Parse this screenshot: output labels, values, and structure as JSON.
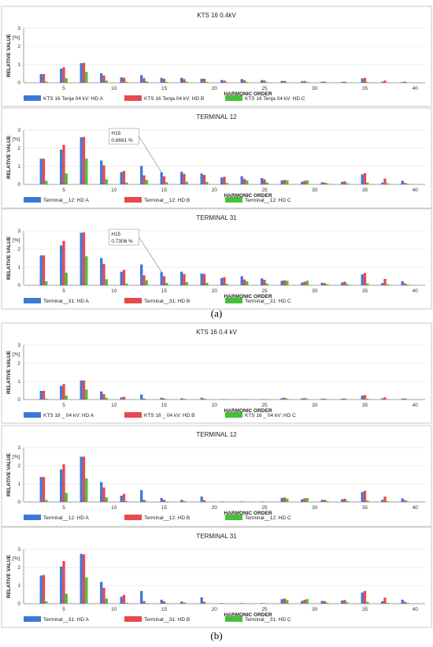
{
  "colors": {
    "A": "#3c78d8",
    "B": "#e8484e",
    "C": "#44c13b"
  },
  "figure": {
    "captions": [
      "(a)",
      "(b)"
    ]
  },
  "chart_data": [
    {
      "type": "bar",
      "group": "(a)",
      "title": "KTS 16 0.4kV",
      "ylabel": "RELATIVE VALUE",
      "yunit": "[%]",
      "xlabel": "HARMONIC ORDER",
      "ylim": [
        0,
        3
      ],
      "yticks": [
        0,
        1,
        2,
        3
      ],
      "xticks": [
        5,
        10,
        15,
        20,
        25,
        30,
        35,
        40
      ],
      "categories": [
        3,
        5,
        7,
        9,
        11,
        13,
        15,
        17,
        19,
        21,
        23,
        25,
        27,
        29,
        31,
        33,
        35,
        37,
        39
      ],
      "series": [
        {
          "name": "KTS 16 Tenja 04 kV: HD A",
          "values": [
            0.48,
            0.78,
            1.08,
            0.52,
            0.3,
            0.42,
            0.27,
            0.27,
            0.22,
            0.15,
            0.2,
            0.15,
            0.1,
            0.08,
            0.06,
            0.05,
            0.24,
            0.06,
            0.04
          ]
        },
        {
          "name": "KTS 16 Tenja 04 kV: HD B",
          "values": [
            0.48,
            0.85,
            1.1,
            0.4,
            0.28,
            0.25,
            0.22,
            0.2,
            0.22,
            0.12,
            0.14,
            0.12,
            0.1,
            0.1,
            0.06,
            0.06,
            0.27,
            0.12,
            0.06
          ]
        },
        {
          "name": "KTS 16 Tenja 04 kV: HD C",
          "values": [
            0.06,
            0.25,
            0.6,
            0.12,
            0.05,
            0.08,
            0.05,
            0.06,
            0.05,
            0.03,
            0.04,
            0.03,
            0.03,
            0.04,
            0.02,
            0.02,
            0.04,
            0.02,
            0.02
          ]
        }
      ]
    },
    {
      "type": "bar",
      "group": "(a)",
      "title": "TERMINAL 12",
      "ylabel": "RELATIVE VALUE",
      "yunit": "[%]",
      "xlabel": "HARMONIC ORDER",
      "ylim": [
        0,
        3
      ],
      "yticks": [
        0,
        1,
        2,
        3
      ],
      "xticks": [
        5,
        10,
        15,
        20,
        25,
        30,
        35,
        40
      ],
      "categories": [
        3,
        5,
        7,
        9,
        11,
        13,
        15,
        17,
        19,
        21,
        23,
        25,
        27,
        29,
        31,
        33,
        35,
        37,
        39
      ],
      "annotation": {
        "label": "H15",
        "value": "0.6691 %",
        "x": 15,
        "y": 0.6691
      },
      "series": [
        {
          "name": "Terminal__12: HD A",
          "values": [
            1.42,
            1.92,
            2.6,
            1.32,
            0.68,
            1.02,
            0.67,
            0.7,
            0.6,
            0.38,
            0.45,
            0.35,
            0.22,
            0.15,
            0.12,
            0.14,
            0.55,
            0.1,
            0.2
          ]
        },
        {
          "name": "Terminal__12: HD B",
          "values": [
            1.42,
            2.18,
            2.62,
            1.05,
            0.75,
            0.5,
            0.45,
            0.58,
            0.52,
            0.42,
            0.3,
            0.28,
            0.25,
            0.2,
            0.1,
            0.17,
            0.62,
            0.32,
            0.08
          ]
        },
        {
          "name": "Terminal__12: HD C",
          "values": [
            0.2,
            0.6,
            1.42,
            0.28,
            0.1,
            0.25,
            0.12,
            0.15,
            0.14,
            0.08,
            0.22,
            0.1,
            0.22,
            0.22,
            0.06,
            0.06,
            0.1,
            0.06,
            0.04
          ]
        }
      ]
    },
    {
      "type": "bar",
      "group": "(a)",
      "title": "TERMINAL 31",
      "ylabel": "RELATIVE VALUE",
      "yunit": "[%]",
      "xlabel": "HARMONIC ORDER",
      "ylim": [
        0,
        3
      ],
      "yticks": [
        0,
        1,
        2,
        3
      ],
      "xticks": [
        5,
        10,
        15,
        20,
        25,
        30,
        35,
        40
      ],
      "categories": [
        3,
        5,
        7,
        9,
        11,
        13,
        15,
        17,
        19,
        21,
        23,
        25,
        27,
        29,
        31,
        33,
        35,
        37,
        39
      ],
      "annotation": {
        "label": "H15",
        "value": "0.7306 %",
        "x": 15,
        "y": 0.7306
      },
      "series": [
        {
          "name": "Terminal__31: HD A",
          "values": [
            1.65,
            2.2,
            2.9,
            1.5,
            0.75,
            1.15,
            0.73,
            0.75,
            0.65,
            0.4,
            0.5,
            0.38,
            0.25,
            0.15,
            0.14,
            0.15,
            0.6,
            0.12,
            0.22
          ]
        },
        {
          "name": "Terminal__31: HD B",
          "values": [
            1.65,
            2.45,
            2.92,
            1.18,
            0.85,
            0.55,
            0.5,
            0.62,
            0.62,
            0.45,
            0.32,
            0.3,
            0.27,
            0.2,
            0.12,
            0.2,
            0.68,
            0.35,
            0.1
          ]
        },
        {
          "name": "Terminal__31: HD C",
          "values": [
            0.22,
            0.7,
            1.6,
            0.33,
            0.1,
            0.28,
            0.13,
            0.17,
            0.14,
            0.08,
            0.22,
            0.1,
            0.25,
            0.25,
            0.06,
            0.07,
            0.1,
            0.06,
            0.04
          ]
        }
      ]
    },
    {
      "type": "bar",
      "group": "(b)",
      "title": "KTS 16 0.4 kV",
      "ylabel": "RELATIVE VALUE",
      "yunit": "[%]",
      "xlabel": "HARMONIC ORDER",
      "ylim": [
        0,
        3
      ],
      "yticks": [
        0,
        1,
        2,
        3
      ],
      "xticks": [
        5,
        10,
        15,
        20,
        25,
        30,
        35,
        40
      ],
      "categories": [
        3,
        5,
        7,
        9,
        11,
        13,
        15,
        17,
        19,
        21,
        23,
        25,
        27,
        29,
        31,
        33,
        35,
        37,
        39
      ],
      "series": [
        {
          "name": "KTS 16 _ 04 kV: HD A",
          "values": [
            0.48,
            0.75,
            1.05,
            0.45,
            0.12,
            0.28,
            0.1,
            0.07,
            0.1,
            0.02,
            0.02,
            0.02,
            0.08,
            0.06,
            0.05,
            0.05,
            0.22,
            0.06,
            0.05
          ]
        },
        {
          "name": "KTS 16 _ 04 kV: HD B",
          "values": [
            0.48,
            0.85,
            1.05,
            0.3,
            0.15,
            0.06,
            0.06,
            0.04,
            0.05,
            0.02,
            0.02,
            0.02,
            0.1,
            0.08,
            0.05,
            0.06,
            0.25,
            0.12,
            0.06
          ]
        },
        {
          "name": "KTS 16 _ 04 kV: HD C",
          "values": [
            0.05,
            0.22,
            0.55,
            0.1,
            0.02,
            0.02,
            0.02,
            0.02,
            0.02,
            0.01,
            0.01,
            0.01,
            0.05,
            0.04,
            0.02,
            0.02,
            0.04,
            0.02,
            0.02
          ]
        }
      ]
    },
    {
      "type": "bar",
      "group": "(b)",
      "title": "TERMINAL 12",
      "ylabel": "RELATIVE VALUE",
      "yunit": "[%]",
      "xlabel": "HARMONIC ORDER",
      "ylim": [
        0,
        3
      ],
      "yticks": [
        0,
        1,
        2,
        3
      ],
      "xticks": [
        5,
        10,
        15,
        20,
        25,
        30,
        35,
        40
      ],
      "categories": [
        3,
        5,
        7,
        9,
        11,
        13,
        15,
        17,
        19,
        21,
        23,
        25,
        27,
        29,
        31,
        33,
        35,
        37,
        39
      ],
      "series": [
        {
          "name": "Terminal__12: HD A",
          "values": [
            1.38,
            1.8,
            2.5,
            1.1,
            0.35,
            0.65,
            0.22,
            0.12,
            0.3,
            0.03,
            0.03,
            0.03,
            0.22,
            0.15,
            0.12,
            0.15,
            0.55,
            0.12,
            0.2
          ]
        },
        {
          "name": "Terminal__12: HD B",
          "values": [
            1.38,
            2.08,
            2.5,
            0.8,
            0.45,
            0.12,
            0.12,
            0.05,
            0.1,
            0.02,
            0.02,
            0.02,
            0.25,
            0.2,
            0.12,
            0.18,
            0.62,
            0.3,
            0.1
          ]
        },
        {
          "name": "Terminal__12: HD C",
          "values": [
            0.12,
            0.5,
            1.3,
            0.25,
            0.05,
            0.03,
            0.03,
            0.02,
            0.02,
            0.01,
            0.01,
            0.01,
            0.18,
            0.22,
            0.05,
            0.06,
            0.08,
            0.05,
            0.04
          ]
        }
      ]
    },
    {
      "type": "bar",
      "group": "(b)",
      "title": "TERMINAL 31",
      "ylabel": "RELATIVE VALUE",
      "yunit": "[%]",
      "xlabel": "HARMONIC ORDER",
      "ylim": [
        0,
        3
      ],
      "yticks": [
        0,
        1,
        2,
        3
      ],
      "xticks": [
        5,
        10,
        15,
        20,
        25,
        30,
        35,
        40
      ],
      "categories": [
        3,
        5,
        7,
        9,
        11,
        13,
        15,
        17,
        19,
        21,
        23,
        25,
        27,
        29,
        31,
        33,
        35,
        37,
        39
      ],
      "series": [
        {
          "name": "Terminal__31: HD A",
          "values": [
            1.55,
            2.05,
            2.75,
            1.2,
            0.38,
            0.7,
            0.22,
            0.12,
            0.35,
            0.03,
            0.03,
            0.03,
            0.25,
            0.15,
            0.15,
            0.17,
            0.62,
            0.13,
            0.22
          ]
        },
        {
          "name": "Terminal__31: HD B",
          "values": [
            1.58,
            2.35,
            2.72,
            0.88,
            0.48,
            0.14,
            0.13,
            0.06,
            0.1,
            0.02,
            0.02,
            0.02,
            0.28,
            0.22,
            0.14,
            0.2,
            0.7,
            0.33,
            0.1
          ]
        },
        {
          "name": "Terminal__31: HD C",
          "values": [
            0.13,
            0.55,
            1.45,
            0.28,
            0.05,
            0.03,
            0.03,
            0.02,
            0.02,
            0.01,
            0.01,
            0.01,
            0.2,
            0.25,
            0.05,
            0.07,
            0.1,
            0.05,
            0.04
          ]
        }
      ]
    }
  ]
}
